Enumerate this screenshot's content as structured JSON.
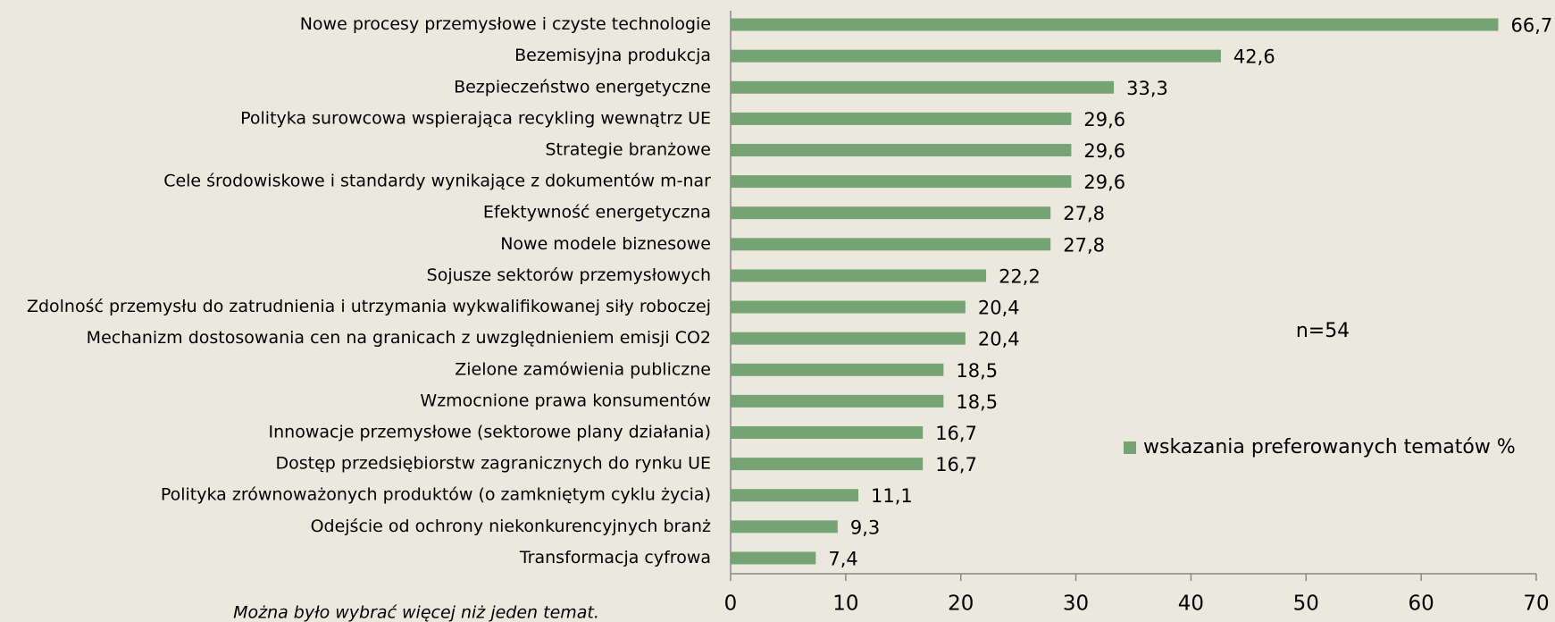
{
  "chart_data": {
    "type": "bar",
    "orientation": "horizontal",
    "categories": [
      "Nowe procesy przemysłowe i czyste technologie",
      "Bezemisyjna produkcja",
      "Bezpieczeństwo energetyczne",
      "Polityka surowcowa wspierająca recykling wewnątrz UE",
      "Strategie branżowe ",
      "Cele środowiskowe i standardy wynikające z dokumentów m-nar",
      "Efektywność energetyczna",
      "Nowe modele biznesowe",
      "Sojusze sektorów przemysłowych",
      "Zdolność przemysłu do zatrudnienia i utrzymania wykwalifikowanej siły roboczej",
      "Mechanizm dostosowania cen na granicach z uwzględnieniem emisji CO2",
      "Zielone zamówienia publiczne",
      "Wzmocnione prawa konsumentów",
      "Innowacje przemysłowe (sektorowe plany działania)",
      "Dostęp przedsiębiorstw zagranicznych do rynku UE",
      "Polityka zrównoważonych produktów (o zamkniętym cyklu życia)",
      "Odejście od ochrony niekonkurencyjnych branż",
      "Transformacja cyfrowa"
    ],
    "series": [
      {
        "name": "wskazania preferowanych tematów %",
        "color": "#75a373",
        "values": [
          66.7,
          42.6,
          33.3,
          29.6,
          29.6,
          29.6,
          27.8,
          27.8,
          22.2,
          20.4,
          20.4,
          18.5,
          18.5,
          16.7,
          16.7,
          11.1,
          9.3,
          7.4
        ],
        "value_labels": [
          "66,7",
          "42,6",
          "33,3",
          "29,6",
          "29,6",
          "29,6",
          "27,8",
          "27,8",
          "22,2",
          "20,4",
          "20,4",
          "18,5",
          "18,5",
          "16,7",
          "16,7",
          "11,1",
          "9,3",
          "7,4"
        ]
      }
    ],
    "xlim": [
      0,
      70
    ],
    "xticks": [
      0,
      10,
      20,
      30,
      40,
      50,
      60,
      70
    ],
    "legend": "right",
    "annotations": [
      "n=54",
      "Można było wybrać więcej niż jeden temat."
    ]
  }
}
